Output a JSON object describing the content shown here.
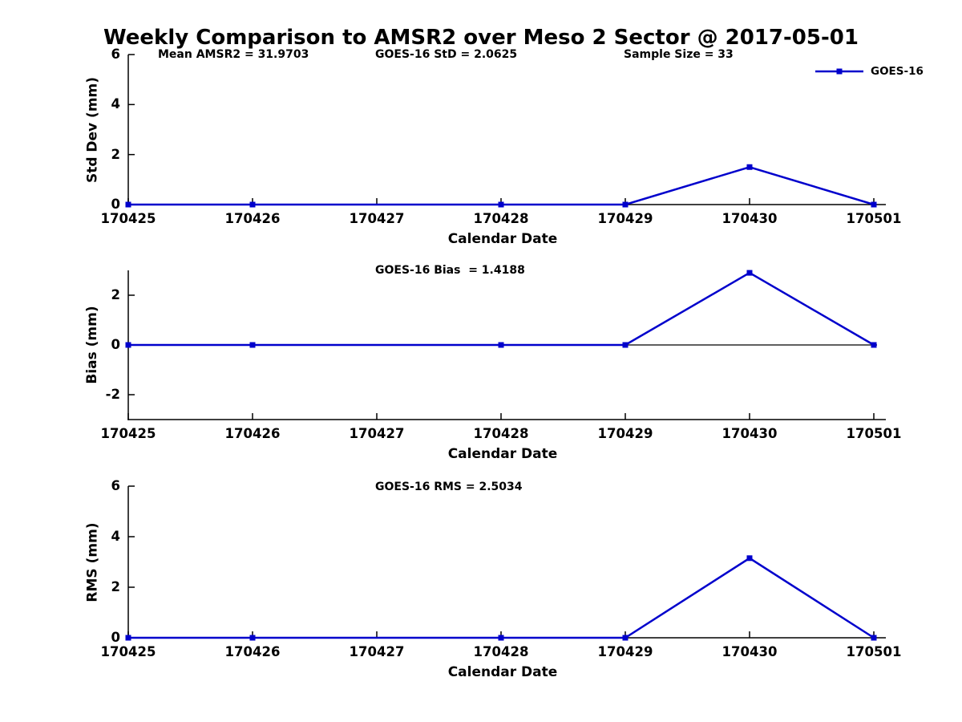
{
  "title": "Weekly Comparison to AMSR2 over Meso 2 Sector @ 2017-05-01",
  "legend": {
    "label": "GOES-16"
  },
  "colors": {
    "series": "#0000cc",
    "axis": "#000000",
    "background": "#ffffff",
    "text": "#000000"
  },
  "chart_data": [
    {
      "type": "line",
      "name": "std-dev",
      "annotations": [
        "Mean AMSR2 = 31.9703",
        "GOES-16 StD = 2.0625",
        "Sample Size = 33"
      ],
      "categories": [
        "170425",
        "170426",
        "170427",
        "170428",
        "170429",
        "170430",
        "170501"
      ],
      "series": [
        {
          "name": "GOES-16",
          "values": [
            0,
            0,
            0,
            0,
            0,
            1.5,
            0
          ],
          "marker_indices": [
            0,
            1,
            3,
            4,
            5,
            6
          ]
        }
      ],
      "xlabel": "Calendar Date",
      "ylabel": "Std Dev (mm)",
      "ylim": [
        0,
        6
      ],
      "yticks": [
        0,
        2,
        4,
        6
      ],
      "zero_line": false,
      "grid": false,
      "legend_position": "top-right-outside"
    },
    {
      "type": "line",
      "name": "bias",
      "annotations": [
        "GOES-16 Bias  = 1.4188"
      ],
      "categories": [
        "170425",
        "170426",
        "170427",
        "170428",
        "170429",
        "170430",
        "170501"
      ],
      "series": [
        {
          "name": "GOES-16",
          "values": [
            0,
            0,
            0,
            0,
            0,
            2.9,
            0
          ],
          "marker_indices": [
            0,
            1,
            3,
            4,
            5,
            6
          ]
        }
      ],
      "xlabel": "Calendar Date",
      "ylabel": "Bias (mm)",
      "ylim": [
        -3,
        3
      ],
      "yticks": [
        -2,
        0,
        2
      ],
      "zero_line": true,
      "grid": false,
      "legend_position": "none"
    },
    {
      "type": "line",
      "name": "rms",
      "annotations": [
        "GOES-16 RMS = 2.5034"
      ],
      "categories": [
        "170425",
        "170426",
        "170427",
        "170428",
        "170429",
        "170430",
        "170501"
      ],
      "series": [
        {
          "name": "GOES-16",
          "values": [
            0,
            0,
            0,
            0,
            0,
            3.15,
            0
          ],
          "marker_indices": [
            0,
            1,
            3,
            4,
            5,
            6
          ]
        }
      ],
      "xlabel": "Calendar Date",
      "ylabel": "RMS (mm)",
      "ylim": [
        0,
        6
      ],
      "yticks": [
        0,
        2,
        4,
        6
      ],
      "zero_line": false,
      "grid": false,
      "legend_position": "none"
    }
  ]
}
